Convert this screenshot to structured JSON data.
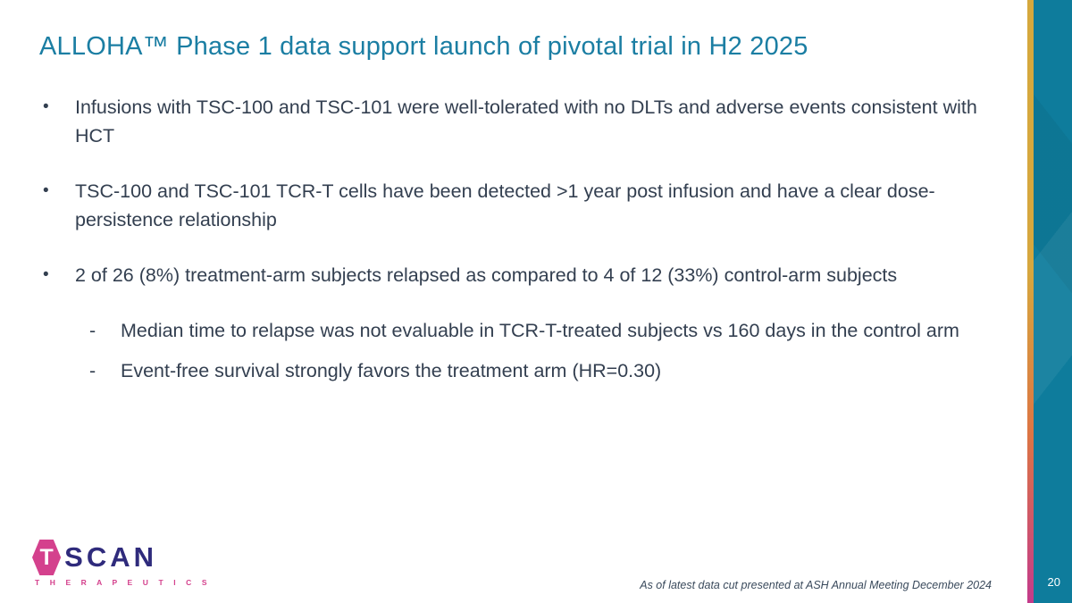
{
  "slide": {
    "title": "ALLOHA™ Phase 1 data support launch of pivotal trial in H2 2025",
    "bullet_marker": "•",
    "subbullet_marker": "-",
    "bullets": [
      {
        "text": "Infusions with TSC-100 and TSC-101 were well-tolerated with no DLTs and adverse events consistent with HCT"
      },
      {
        "text": "TSC-100 and TSC-101 TCR-T cells have been detected >1 year post infusion and have a clear dose-persistence relationship"
      },
      {
        "text": "2 of 26 (8%) treatment-arm subjects relapsed as compared to 4 of 12 (33%) control-arm subjects"
      }
    ],
    "sub_bullets": [
      {
        "text": "Median time to relapse was not evaluable in TCR-T-treated subjects vs 160 days in the control arm"
      },
      {
        "text": "Event-free survival strongly favors the treatment arm (HR=0.30)"
      }
    ],
    "footer_note": "As of latest data cut presented at ASH Annual Meeting December 2024",
    "page_number": "20",
    "logo": {
      "hex_letter": "T",
      "name": "SCAN",
      "subtitle": "T H E R A P E U T I C S"
    },
    "colors": {
      "title_teal": "#1b7ea3",
      "body_text": "#333f50",
      "side_bar_teal": "#0e7c9c",
      "accent_gold": "#d5a83d",
      "accent_orange": "#dc7544",
      "accent_magenta": "#c33b8b",
      "logo_pink": "#d4418d",
      "logo_navy": "#2f2b7c"
    }
  }
}
